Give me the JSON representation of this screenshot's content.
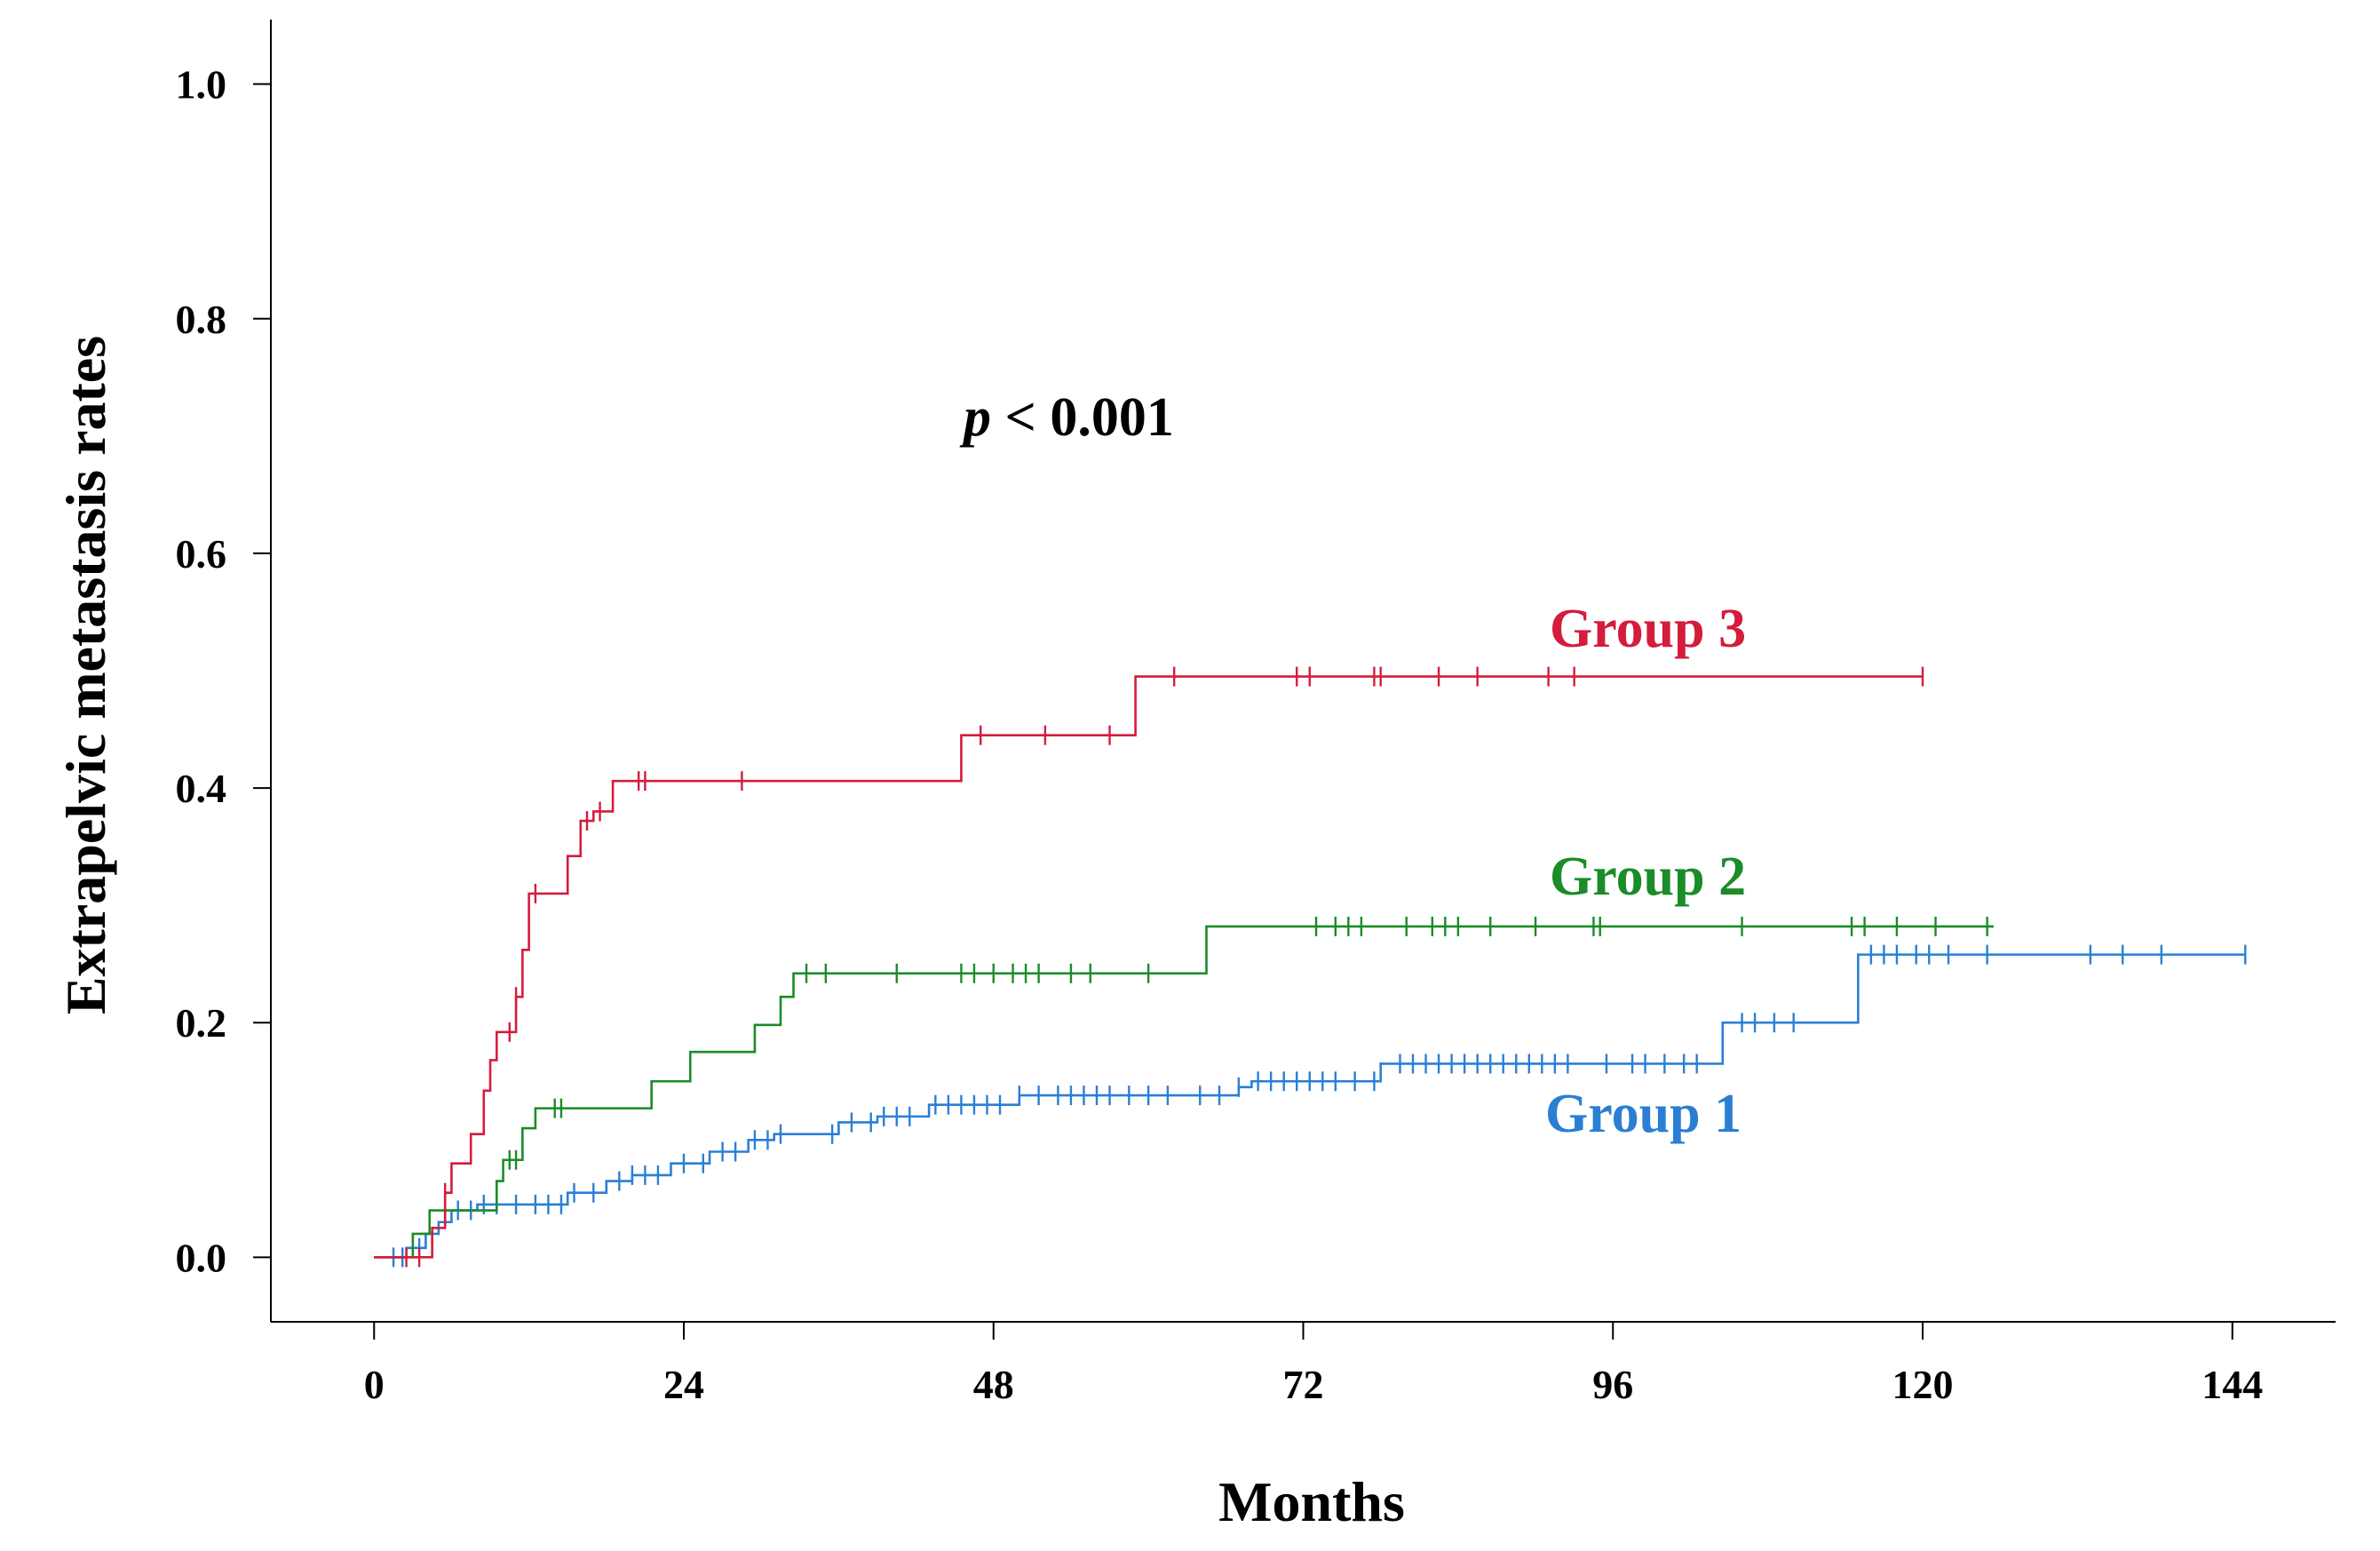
{
  "chart_data": {
    "type": "line",
    "subtype": "kaplan-meier-cumulative-incidence-step",
    "xlabel": "Months",
    "ylabel": "Extrapelvic metastasis rates",
    "annotation": {
      "p_symbol": "p",
      "p_text": " < 0.001"
    },
    "xlim": [
      -8,
      152
    ],
    "ylim": [
      -0.055,
      1.055
    ],
    "x_ticks": [
      0,
      24,
      48,
      72,
      96,
      120,
      144
    ],
    "y_ticks": [
      0.0,
      0.2,
      0.4,
      0.6,
      0.8,
      1.0
    ],
    "y_tick_labels": [
      "0.0",
      "0.2",
      "0.4",
      "0.6",
      "0.8",
      "1.0"
    ],
    "legend": "inline labels next to curves",
    "series": [
      {
        "name": "Group 1",
        "color": "#2a7fd4",
        "steps": [
          [
            0,
            0.0
          ],
          [
            2.5,
            0.008
          ],
          [
            4,
            0.02
          ],
          [
            5,
            0.03
          ],
          [
            6,
            0.04
          ],
          [
            8,
            0.045
          ],
          [
            15,
            0.055
          ],
          [
            18,
            0.065
          ],
          [
            20,
            0.07
          ],
          [
            23,
            0.08
          ],
          [
            26,
            0.09
          ],
          [
            29,
            0.1
          ],
          [
            31,
            0.105
          ],
          [
            36,
            0.115
          ],
          [
            39,
            0.12
          ],
          [
            43,
            0.13
          ],
          [
            50,
            0.138
          ],
          [
            67,
            0.145
          ],
          [
            68,
            0.15
          ],
          [
            78,
            0.165
          ],
          [
            104.5,
            0.2
          ],
          [
            115,
            0.258
          ],
          [
            145,
            0.258
          ]
        ],
        "censored": [
          1.5,
          2.2,
          3.5,
          6.5,
          7.5,
          8.5,
          9.5,
          11,
          12.5,
          13.5,
          14.5,
          15.5,
          17,
          19,
          20,
          21,
          22,
          24,
          25.5,
          27,
          28,
          29.5,
          30.5,
          31.5,
          35.5,
          37,
          38.5,
          39.5,
          40.5,
          41.5,
          43.5,
          44.5,
          45.5,
          46.5,
          47.5,
          48.5,
          50,
          51.5,
          53,
          54,
          55,
          56,
          57,
          58.5,
          60,
          61.5,
          64,
          65.5,
          67,
          68.5,
          69.5,
          70.5,
          71.5,
          72.5,
          73.5,
          74.5,
          76,
          77.5,
          79.5,
          80.5,
          81.5,
          82.5,
          83.5,
          84.5,
          85.5,
          86.5,
          87.5,
          88.5,
          89.5,
          90.5,
          91.5,
          92.5,
          95.5,
          97.5,
          98.5,
          100,
          101.5,
          102.5,
          106,
          107,
          108.5,
          110,
          116,
          117,
          118,
          119.5,
          120.5,
          122,
          125,
          133,
          135.5,
          138.5,
          145
        ]
      },
      {
        "name": "Group 2",
        "color": "#1a8c28",
        "steps": [
          [
            0,
            0.0
          ],
          [
            3,
            0.02
          ],
          [
            4.3,
            0.04
          ],
          [
            9.5,
            0.065
          ],
          [
            10,
            0.083
          ],
          [
            11.5,
            0.11
          ],
          [
            12.5,
            0.127
          ],
          [
            21.5,
            0.15
          ],
          [
            24.5,
            0.175
          ],
          [
            29.5,
            0.198
          ],
          [
            31.5,
            0.222
          ],
          [
            32.5,
            0.242
          ],
          [
            64.5,
            0.282
          ],
          [
            125.5,
            0.282
          ]
        ],
        "censored": [
          5.5,
          10.5,
          11,
          14,
          14.5,
          33.5,
          35,
          40.5,
          45.5,
          46.5,
          48,
          49.5,
          50.5,
          51.5,
          54,
          55.5,
          60,
          73,
          74.5,
          75.5,
          76.5,
          80,
          82,
          83,
          84,
          86.5,
          90,
          94.5,
          95,
          106,
          114.5,
          115.5,
          118,
          121,
          125
        ]
      },
      {
        "name": "Group 3",
        "color": "#d41c3c",
        "steps": [
          [
            0,
            0.0
          ],
          [
            4.5,
            0.025
          ],
          [
            5.5,
            0.055
          ],
          [
            6,
            0.08
          ],
          [
            7.5,
            0.105
          ],
          [
            8.5,
            0.142
          ],
          [
            9,
            0.168
          ],
          [
            9.5,
            0.192
          ],
          [
            11,
            0.222
          ],
          [
            11.5,
            0.262
          ],
          [
            12,
            0.31
          ],
          [
            15,
            0.342
          ],
          [
            16,
            0.372
          ],
          [
            17,
            0.38
          ],
          [
            18.5,
            0.406
          ],
          [
            45.5,
            0.445
          ],
          [
            59,
            0.495
          ],
          [
            120,
            0.495
          ]
        ],
        "censored": [
          2.5,
          3.5,
          5.5,
          10.5,
          11,
          12.5,
          16.5,
          17.5,
          20.5,
          21,
          28.5,
          47,
          52,
          57,
          62,
          71.5,
          72.5,
          77.5,
          78,
          82.5,
          85.5,
          91,
          93,
          120
        ]
      }
    ]
  }
}
